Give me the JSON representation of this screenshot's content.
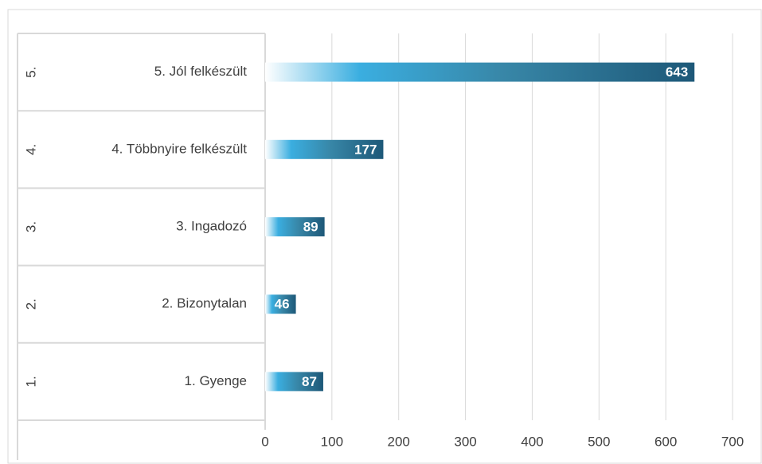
{
  "chart_data": {
    "type": "bar",
    "orientation": "horizontal",
    "groups": [
      "1.",
      "2.",
      "3.",
      "4.",
      "5."
    ],
    "categories": [
      "1. Gyenge",
      "2. Bizonytalan",
      "3. Ingadozó",
      "4. Többnyire felkészült",
      "5. Jól felkészült"
    ],
    "values": [
      87,
      46,
      89,
      177,
      643
    ],
    "color": "#1f5c7a",
    "xlim": [
      0,
      700
    ],
    "xticks": [
      0,
      100,
      200,
      300,
      400,
      500,
      600,
      700
    ],
    "grid": true
  }
}
